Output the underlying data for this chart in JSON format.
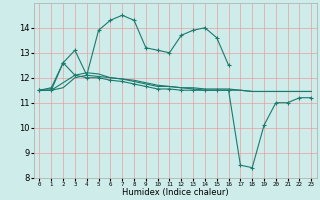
{
  "xlabel": "Humidex (Indice chaleur)",
  "bg_color": "#ceecea",
  "grid_color": "#f5b8b8",
  "line_color": "#1a7a6e",
  "ylim": [
    8,
    15
  ],
  "xlim": [
    -0.5,
    23.5
  ],
  "yticks": [
    8,
    9,
    10,
    11,
    12,
    13,
    14
  ],
  "xtick_labels": [
    "0",
    "1",
    "2",
    "3",
    "4",
    "5",
    "6",
    "7",
    "8",
    "9",
    "10",
    "11",
    "12",
    "13",
    "14",
    "15",
    "16",
    "17",
    "18",
    "19",
    "20",
    "21",
    "22",
    "23"
  ],
  "series": [
    {
      "x": [
        0,
        1,
        2,
        3,
        4,
        5,
        6,
        7,
        8,
        9,
        10,
        11,
        12,
        13,
        14,
        15,
        16
      ],
      "y": [
        11.5,
        11.6,
        12.6,
        13.1,
        12.1,
        13.9,
        14.3,
        14.5,
        14.3,
        13.2,
        13.1,
        13.0,
        13.7,
        13.9,
        14.0,
        13.6,
        12.5
      ],
      "has_markers": true
    },
    {
      "x": [
        0,
        1,
        2,
        3,
        4,
        5,
        6,
        7,
        8,
        9,
        10,
        11,
        12,
        13,
        14,
        15,
        16,
        17,
        18,
        19,
        20,
        21,
        22,
        23
      ],
      "y": [
        11.5,
        11.5,
        11.6,
        12.0,
        12.1,
        12.05,
        12.0,
        11.95,
        11.85,
        11.75,
        11.65,
        11.65,
        11.6,
        11.6,
        11.55,
        11.55,
        11.55,
        11.5,
        11.45,
        11.45,
        11.45,
        11.45,
        11.45,
        11.45
      ],
      "has_markers": false
    },
    {
      "x": [
        0,
        1,
        2,
        3,
        4,
        5,
        6,
        7,
        8,
        9,
        10,
        11,
        12,
        13,
        14,
        15,
        16,
        17,
        18,
        19,
        20,
        21,
        22,
        23
      ],
      "y": [
        11.5,
        11.5,
        12.6,
        12.1,
        12.0,
        12.0,
        11.9,
        11.85,
        11.75,
        11.65,
        11.55,
        11.55,
        11.5,
        11.5,
        11.5,
        11.5,
        11.5,
        8.5,
        8.4,
        10.1,
        11.0,
        11.0,
        11.2,
        11.2
      ],
      "has_markers": true
    },
    {
      "x": [
        0,
        1,
        2,
        3,
        4,
        5,
        6,
        7,
        8,
        9,
        10,
        11,
        12,
        13,
        14,
        15,
        16,
        17,
        18,
        19,
        20,
        21,
        22,
        23
      ],
      "y": [
        11.5,
        11.5,
        11.8,
        12.1,
        12.2,
        12.15,
        12.0,
        11.95,
        11.9,
        11.8,
        11.7,
        11.65,
        11.6,
        11.55,
        11.5,
        11.5,
        11.5,
        11.5,
        11.45,
        11.45,
        11.45,
        11.45,
        11.45,
        11.45
      ],
      "has_markers": false
    }
  ]
}
